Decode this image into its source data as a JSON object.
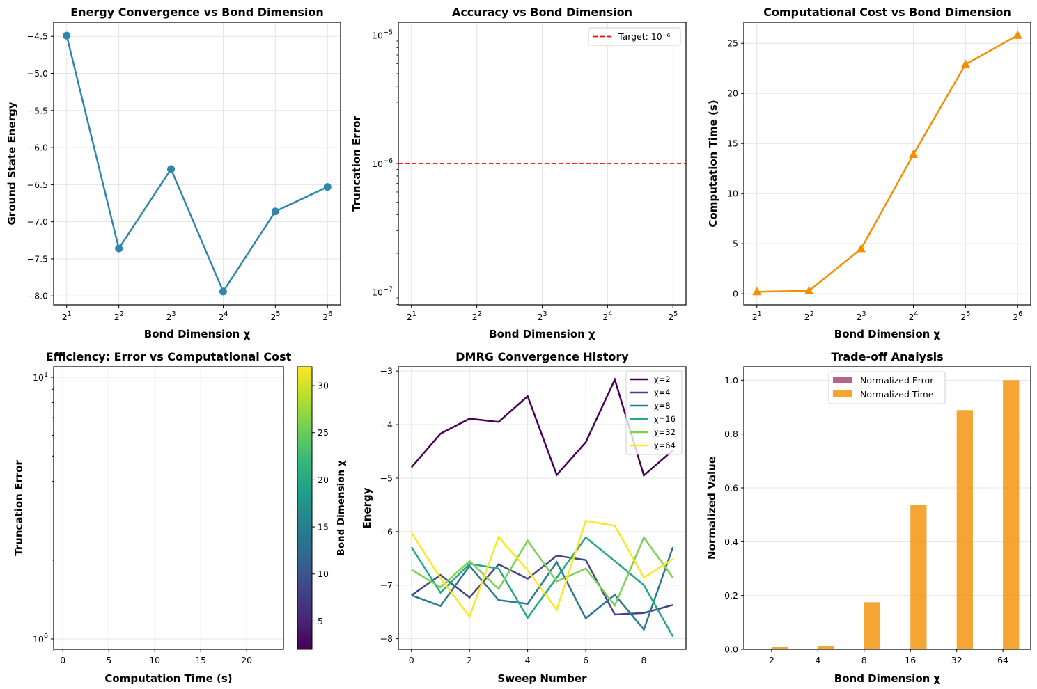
{
  "chart_data": [
    {
      "id": "energy",
      "type": "line",
      "title": "Energy Convergence vs Bond Dimension",
      "xlabel": "Bond Dimension χ",
      "ylabel": "Ground State Energy",
      "xscale": "log2",
      "x": [
        2,
        4,
        8,
        16,
        32,
        64
      ],
      "xtick_labels": [
        [
          "2",
          "1"
        ],
        [
          "2",
          "2"
        ],
        [
          "2",
          "3"
        ],
        [
          "2",
          "4"
        ],
        [
          "2",
          "5"
        ],
        [
          "2",
          "6"
        ]
      ],
      "series": [
        {
          "name": "Ground State Energy",
          "values": [
            -4.49,
            -7.36,
            -6.29,
            -7.94,
            -6.86,
            -6.53
          ],
          "color": "#2e86ab",
          "marker": "circle"
        }
      ],
      "ylim": [
        -8.12,
        -4.31
      ],
      "yticks": [
        -8.0,
        -7.5,
        -7.0,
        -6.5,
        -6.0,
        -5.5,
        -5.0,
        -4.5
      ],
      "ytick_labels": [
        "−8.0",
        "−7.5",
        "−7.0",
        "−6.5",
        "−6.0",
        "−5.5",
        "−5.0",
        "−4.5"
      ],
      "grid": true
    },
    {
      "id": "accuracy",
      "type": "line",
      "title": "Accuracy vs Bond Dimension",
      "xlabel": "Bond Dimension χ",
      "ylabel": "Truncation Error",
      "xscale": "log2",
      "yscale": "log10",
      "x": [
        2,
        4,
        8,
        16,
        32
      ],
      "xtick_labels": [
        [
          "2",
          "1"
        ],
        [
          "2",
          "2"
        ],
        [
          "2",
          "3"
        ],
        [
          "2",
          "4"
        ],
        [
          "2",
          "5"
        ]
      ],
      "ylim_exp": [
        -7.1,
        -4.9
      ],
      "yticks_exp": [
        -7,
        -6,
        -5
      ],
      "ytick_labels": [
        [
          "10",
          "−7"
        ],
        [
          "10",
          "−6"
        ],
        [
          "10",
          "−5"
        ]
      ],
      "series": [],
      "reference_line": {
        "label": "Target: 10⁻⁶",
        "value": 1e-06,
        "color": "#ff0000",
        "style": "dashed"
      },
      "legend": {
        "position": "top-right",
        "entries": [
          "Target: 10⁻⁶"
        ]
      },
      "grid": true
    },
    {
      "id": "cost",
      "type": "line",
      "title": "Computational Cost vs Bond Dimension",
      "xlabel": "Bond Dimension χ",
      "ylabel": "Computation Time (s)",
      "xscale": "log2",
      "x": [
        2,
        4,
        8,
        16,
        32,
        64
      ],
      "xtick_labels": [
        [
          "2",
          "1"
        ],
        [
          "2",
          "2"
        ],
        [
          "2",
          "3"
        ],
        [
          "2",
          "4"
        ],
        [
          "2",
          "5"
        ],
        [
          "2",
          "6"
        ]
      ],
      "series": [
        {
          "name": "Computation Time",
          "values": [
            0.2,
            0.3,
            4.5,
            13.9,
            22.9,
            25.8
          ],
          "color": "#f18f01",
          "marker": "triangle"
        }
      ],
      "ylim": [
        -1.1,
        27.1
      ],
      "yticks": [
        0,
        5,
        10,
        15,
        20,
        25
      ],
      "ytick_labels": [
        "0",
        "5",
        "10",
        "15",
        "20",
        "25"
      ],
      "grid": true
    },
    {
      "id": "efficiency",
      "type": "scatter",
      "title": "Efficiency: Error vs Computational Cost",
      "xlabel": "Computation Time (s)",
      "ylabel": "Truncation Error",
      "yscale": "log10",
      "xlim": [
        -1.0,
        24.0
      ],
      "xticks": [
        0,
        5,
        10,
        15,
        20
      ],
      "xtick_labels": [
        "0",
        "5",
        "10",
        "15",
        "20"
      ],
      "ylim_exp": [
        -0.04,
        1.04
      ],
      "yticks_exp": [
        0,
        1
      ],
      "ytick_labels": [
        [
          "10",
          "0"
        ],
        [
          "10",
          "1"
        ]
      ],
      "series": [],
      "colorbar": {
        "label": "Bond Dimension χ",
        "range": [
          2,
          32
        ],
        "ticks": [
          5,
          10,
          15,
          20,
          25,
          30
        ],
        "colormap": "viridis"
      },
      "grid": true
    },
    {
      "id": "dmrg",
      "type": "line",
      "title": "DMRG Convergence History",
      "xlabel": "Sweep Number",
      "ylabel": "Energy",
      "x": [
        0,
        1,
        2,
        3,
        4,
        5,
        6,
        7,
        8,
        9
      ],
      "xlim": [
        -0.45,
        9.45
      ],
      "xticks": [
        0,
        2,
        4,
        6,
        8
      ],
      "xtick_labels": [
        "0",
        "2",
        "4",
        "6",
        "8"
      ],
      "ylim": [
        -8.2,
        -2.92
      ],
      "yticks": [
        -8,
        -7,
        -6,
        -5,
        -4,
        -3
      ],
      "ytick_labels": [
        "−8",
        "−7",
        "−6",
        "−5",
        "−4",
        "−3"
      ],
      "series": [
        {
          "name": "χ=2",
          "color": "#440154",
          "values": [
            -4.8,
            -4.17,
            -3.89,
            -3.95,
            -3.47,
            -4.94,
            -4.33,
            -3.16,
            -4.95,
            -4.48
          ]
        },
        {
          "name": "χ=4",
          "color": "#414487",
          "values": [
            -7.19,
            -6.81,
            -7.23,
            -6.61,
            -6.88,
            -6.45,
            -6.53,
            -7.55,
            -7.52,
            -7.37
          ]
        },
        {
          "name": "χ=8",
          "color": "#2a788e",
          "values": [
            -7.19,
            -7.39,
            -6.64,
            -7.28,
            -7.35,
            -6.57,
            -7.62,
            -7.18,
            -7.83,
            -6.29
          ]
        },
        {
          "name": "χ=16",
          "color": "#22a884",
          "values": [
            -6.29,
            -7.14,
            -6.6,
            -6.69,
            -7.61,
            -6.86,
            -6.11,
            -6.55,
            -7.0,
            -7.96
          ]
        },
        {
          "name": "χ=32",
          "color": "#7ad151",
          "values": [
            -6.71,
            -7.04,
            -6.55,
            -7.07,
            -6.17,
            -6.93,
            -6.69,
            -7.38,
            -6.11,
            -6.86
          ]
        },
        {
          "name": "χ=64",
          "color": "#fde725",
          "values": [
            -6.02,
            -6.87,
            -7.59,
            -6.1,
            -6.72,
            -7.46,
            -5.8,
            -5.89,
            -6.86,
            -6.51
          ]
        }
      ],
      "legend": {
        "position": "top-right"
      },
      "grid": true
    },
    {
      "id": "tradeoff",
      "type": "bar",
      "title": "Trade-off Analysis",
      "xlabel": "Bond Dimension χ",
      "ylabel": "Normalized Value",
      "categories": [
        "2",
        "4",
        "8",
        "16",
        "32",
        "64"
      ],
      "series": [
        {
          "name": "Normalized Error",
          "color": "#a23b72",
          "values": [
            0,
            0,
            0,
            0,
            0,
            0
          ]
        },
        {
          "name": "Normalized Time",
          "color": "#f18f01",
          "values": [
            0.008,
            0.013,
            0.175,
            0.537,
            0.889,
            1.0
          ]
        }
      ],
      "ylim": [
        0,
        1.05
      ],
      "yticks": [
        0.0,
        0.2,
        0.4,
        0.6,
        0.8,
        1.0
      ],
      "ytick_labels": [
        "0.0",
        "0.2",
        "0.4",
        "0.6",
        "0.8",
        "1.0"
      ],
      "legend": {
        "position": "upper-center"
      },
      "grid": "y"
    }
  ]
}
